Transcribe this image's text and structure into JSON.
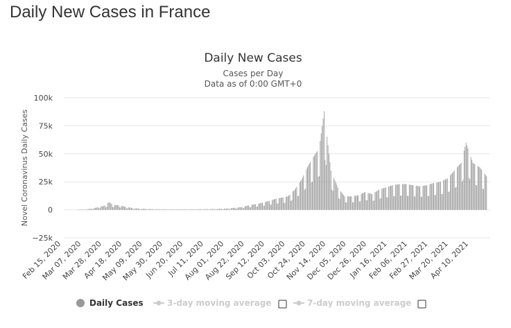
{
  "page": {
    "title": "Daily New Cases in France"
  },
  "chart_data": {
    "type": "bar",
    "title": "Daily New Cases",
    "subtitle_lines": [
      "Cases per Day",
      "Data as of 0:00 GMT+0"
    ],
    "ylabel": "Novel Coronavirus Daily Cases",
    "xlabel": "",
    "ylim": [
      -25000,
      100000
    ],
    "yticks": [
      {
        "value": 100000,
        "label": "100k"
      },
      {
        "value": 75000,
        "label": "75k"
      },
      {
        "value": 50000,
        "label": "50k"
      },
      {
        "value": 25000,
        "label": "25k"
      },
      {
        "value": 0,
        "label": "0"
      },
      {
        "value": -25000,
        "label": "-25k"
      }
    ],
    "grid": true,
    "x_range": [
      "2020-02-15",
      "2021-04-25"
    ],
    "x_tick_labels": [
      "Feb 15, 2020",
      "Mar 07, 2020",
      "Mar 28, 2020",
      "Apr 18, 2020",
      "May 09, 2020",
      "May 30, 2020",
      "Jun 20, 2020",
      "Jul 11, 2020",
      "Aug 01, 2020",
      "Aug 22, 2020",
      "Sep 12, 2020",
      "Oct 03, 2020",
      "Oct 24, 2020",
      "Nov 14, 2020",
      "Dec 05, 2020",
      "Dec 26, 2020",
      "Jan 16, 2021",
      "Feb 06, 2021",
      "Feb 27, 2021",
      "Mar 20, 2021",
      "Apr 10, 2021"
    ],
    "series": [
      {
        "name": "Daily Cases",
        "color": "#999999",
        "points": [
          [
            "2020-03-01",
            100
          ],
          [
            "2020-03-08",
            300
          ],
          [
            "2020-03-15",
            1200
          ],
          [
            "2020-03-22",
            2500
          ],
          [
            "2020-03-29",
            4000
          ],
          [
            "2020-04-01",
            7000
          ],
          [
            "2020-04-05",
            4500
          ],
          [
            "2020-04-12",
            4000
          ],
          [
            "2020-04-19",
            2500
          ],
          [
            "2020-04-26",
            1500
          ],
          [
            "2020-05-03",
            1000
          ],
          [
            "2020-05-10",
            800
          ],
          [
            "2020-05-17",
            600
          ],
          [
            "2020-05-24",
            500
          ],
          [
            "2020-06-01",
            400
          ],
          [
            "2020-06-15",
            400
          ],
          [
            "2020-07-01",
            500
          ],
          [
            "2020-07-15",
            700
          ],
          [
            "2020-08-01",
            1200
          ],
          [
            "2020-08-15",
            2500
          ],
          [
            "2020-08-22",
            4000
          ],
          [
            "2020-09-01",
            5500
          ],
          [
            "2020-09-12",
            8000
          ],
          [
            "2020-09-19",
            10000
          ],
          [
            "2020-10-01",
            12000
          ],
          [
            "2020-10-08",
            18000
          ],
          [
            "2020-10-15",
            27000
          ],
          [
            "2020-10-22",
            40000
          ],
          [
            "2020-10-29",
            50000
          ],
          [
            "2020-11-02",
            55000
          ],
          [
            "2020-11-07",
            88000
          ],
          [
            "2020-11-14",
            35000
          ],
          [
            "2020-11-21",
            20000
          ],
          [
            "2020-11-28",
            12000
          ],
          [
            "2020-12-05",
            12000
          ],
          [
            "2020-12-12",
            13000
          ],
          [
            "2020-12-19",
            16000
          ],
          [
            "2020-12-26",
            14000
          ],
          [
            "2021-01-02",
            18000
          ],
          [
            "2021-01-09",
            20000
          ],
          [
            "2021-01-16",
            22000
          ],
          [
            "2021-01-23",
            23000
          ],
          [
            "2021-01-30",
            23000
          ],
          [
            "2021-02-06",
            22000
          ],
          [
            "2021-02-13",
            21000
          ],
          [
            "2021-02-20",
            22000
          ],
          [
            "2021-02-27",
            24000
          ],
          [
            "2021-03-06",
            25000
          ],
          [
            "2021-03-13",
            28000
          ],
          [
            "2021-03-20",
            35000
          ],
          [
            "2021-03-27",
            42000
          ],
          [
            "2021-04-01",
            60000
          ],
          [
            "2021-04-08",
            42000
          ],
          [
            "2021-04-15",
            38000
          ],
          [
            "2021-04-22",
            30000
          ]
        ]
      }
    ],
    "legend": {
      "placement": "bottom",
      "items": [
        {
          "label": "Daily Cases",
          "active": true,
          "checkbox": false
        },
        {
          "label": "3-day moving average",
          "active": false,
          "checkbox": true
        },
        {
          "label": "7-day moving average",
          "active": false,
          "checkbox": true
        }
      ]
    }
  }
}
